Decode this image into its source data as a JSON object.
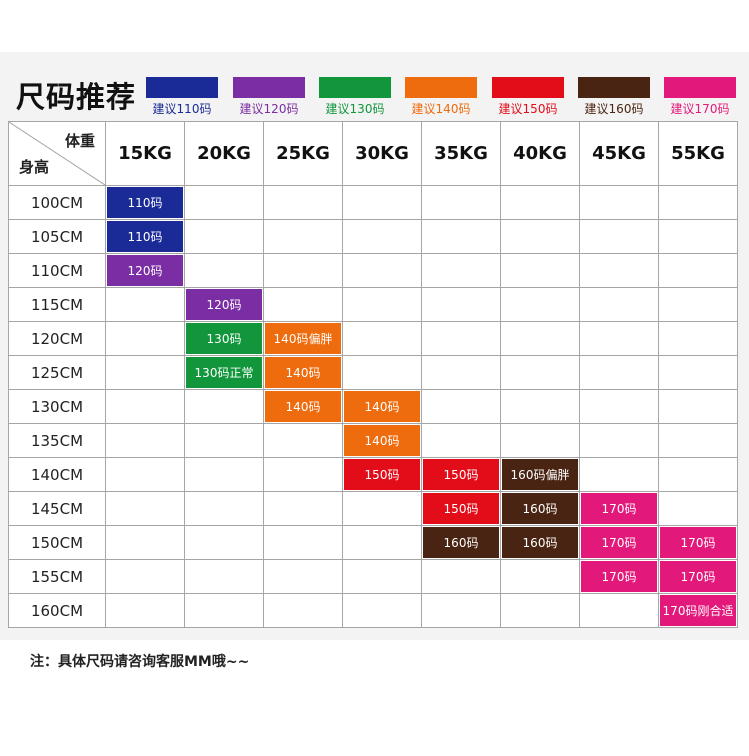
{
  "title": "尺码推荐",
  "legend": [
    {
      "label": "建议110码",
      "color": "#1a2a96"
    },
    {
      "label": "建议120码",
      "color": "#7b2ea3"
    },
    {
      "label": "建议130码",
      "color": "#11963b"
    },
    {
      "label": "建议140码",
      "color": "#ee6b0e"
    },
    {
      "label": "建议150码",
      "color": "#e30d1a"
    },
    {
      "label": "建议160码",
      "color": "#4a2412"
    },
    {
      "label": "建议170码",
      "color": "#e2197a"
    }
  ],
  "corner": {
    "weight_label": "体重",
    "height_label": "身高"
  },
  "weights": [
    "15KG",
    "20KG",
    "25KG",
    "30KG",
    "35KG",
    "40KG",
    "45KG",
    "55KG"
  ],
  "rows": [
    {
      "height": "100CM",
      "cells": [
        {
          "col": 0,
          "text": "110码",
          "color": "#1a2a96"
        }
      ]
    },
    {
      "height": "105CM",
      "cells": [
        {
          "col": 0,
          "text": "110码",
          "color": "#1a2a96"
        }
      ]
    },
    {
      "height": "110CM",
      "cells": [
        {
          "col": 0,
          "text": "120码",
          "color": "#7b2ea3"
        }
      ]
    },
    {
      "height": "115CM",
      "cells": [
        {
          "col": 1,
          "text": "120码",
          "color": "#7b2ea3"
        }
      ]
    },
    {
      "height": "120CM",
      "cells": [
        {
          "col": 1,
          "text": "130码",
          "color": "#11963b"
        },
        {
          "col": 2,
          "text": "140码偏胖",
          "color": "#ee6b0e"
        }
      ]
    },
    {
      "height": "125CM",
      "cells": [
        {
          "col": 1,
          "text": "130码正常",
          "color": "#11963b"
        },
        {
          "col": 2,
          "text": "140码",
          "color": "#ee6b0e"
        }
      ]
    },
    {
      "height": "130CM",
      "cells": [
        {
          "col": 2,
          "text": "140码",
          "color": "#ee6b0e"
        },
        {
          "col": 3,
          "text": "140码",
          "color": "#ee6b0e"
        }
      ]
    },
    {
      "height": "135CM",
      "cells": [
        {
          "col": 3,
          "text": "140码",
          "color": "#ee6b0e"
        }
      ]
    },
    {
      "height": "140CM",
      "cells": [
        {
          "col": 3,
          "text": "150码",
          "color": "#e30d1a"
        },
        {
          "col": 4,
          "text": "150码",
          "color": "#e30d1a"
        },
        {
          "col": 5,
          "text": "160码偏胖",
          "color": "#4a2412"
        }
      ]
    },
    {
      "height": "145CM",
      "cells": [
        {
          "col": 4,
          "text": "150码",
          "color": "#e30d1a"
        },
        {
          "col": 5,
          "text": "160码",
          "color": "#4a2412"
        },
        {
          "col": 6,
          "text": "170码",
          "color": "#e2197a"
        }
      ]
    },
    {
      "height": "150CM",
      "cells": [
        {
          "col": 4,
          "text": "160码",
          "color": "#4a2412"
        },
        {
          "col": 5,
          "text": "160码",
          "color": "#4a2412"
        },
        {
          "col": 6,
          "text": "170码",
          "color": "#e2197a"
        },
        {
          "col": 7,
          "text": "170码",
          "color": "#e2197a"
        }
      ]
    },
    {
      "height": "155CM",
      "cells": [
        {
          "col": 6,
          "text": "170码",
          "color": "#e2197a"
        },
        {
          "col": 7,
          "text": "170码",
          "color": "#e2197a"
        }
      ]
    },
    {
      "height": "160CM",
      "cells": [
        {
          "col": 7,
          "text": "170码刚合适",
          "color": "#e2197a"
        }
      ]
    }
  ],
  "note": "注：具体尺码请咨询客服MM哦~~"
}
